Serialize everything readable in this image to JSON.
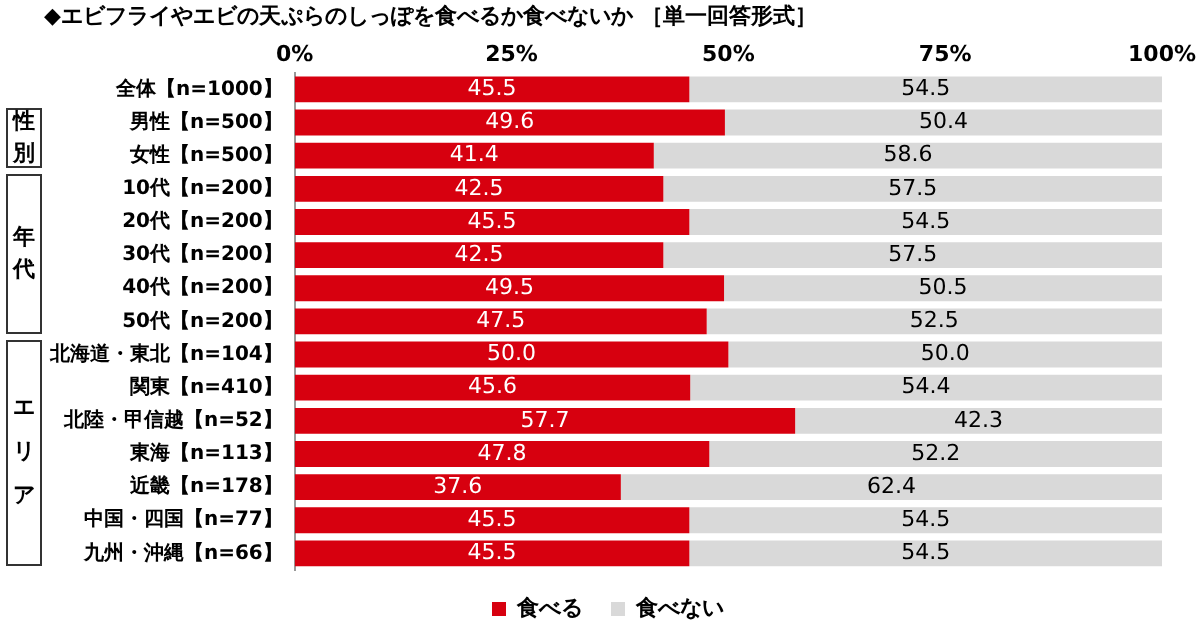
{
  "chart_data": {
    "type": "bar",
    "orientation": "horizontal",
    "stacked": true,
    "title": "◆エビフライやエビの天ぷらのしっぽを食べるか食べないか ［単一回答形式］",
    "categories": [
      "全体【n=1000】",
      "男性【n=500】",
      "女性【n=500】",
      "10代【n=200】",
      "20代【n=200】",
      "30代【n=200】",
      "40代【n=200】",
      "50代【n=200】",
      "北海道・東北【n=104】",
      "関東【n=410】",
      "北陸・甲信越【n=52】",
      "東海【n=113】",
      "近畿【n=178】",
      "中国・四国【n=77】",
      "九州・沖縄【n=66】"
    ],
    "series": [
      {
        "name": "食べる",
        "color": "#d7000f",
        "values": [
          45.5,
          49.6,
          41.4,
          42.5,
          45.5,
          42.5,
          49.5,
          47.5,
          50,
          45.6,
          57.7,
          47.8,
          37.6,
          45.5,
          45.5
        ],
        "value_labels": [
          "45.5",
          "49.6",
          "41.4",
          "42.5",
          "45.5",
          "42.5",
          "49.5",
          "47.5",
          "50.0",
          "45.6",
          "57.7",
          "47.8",
          "37.6",
          "45.5",
          "45.5"
        ]
      },
      {
        "name": "食べない",
        "color": "#d9d9d9",
        "values": [
          54.5,
          50.4,
          58.6,
          57.5,
          54.5,
          57.5,
          50.5,
          52.5,
          50,
          54.4,
          42.3,
          52.2,
          62.4,
          54.5,
          54.5
        ],
        "value_labels": [
          "54.5",
          "50.4",
          "58.6",
          "57.5",
          "54.5",
          "57.5",
          "50.5",
          "52.5",
          "50.0",
          "54.4",
          "42.3",
          "52.2",
          "62.4",
          "54.5",
          "54.5"
        ]
      }
    ],
    "xlim": [
      0,
      100
    ],
    "xticks": [
      {
        "value": 0,
        "label": "0%"
      },
      {
        "value": 25,
        "label": "25%"
      },
      {
        "value": 50,
        "label": "50%"
      },
      {
        "value": 75,
        "label": "75%"
      },
      {
        "value": 100,
        "label": "100%"
      }
    ],
    "grid": false,
    "legend": "bottom",
    "annotations": [
      "性別",
      "年代",
      "エリア"
    ]
  }
}
